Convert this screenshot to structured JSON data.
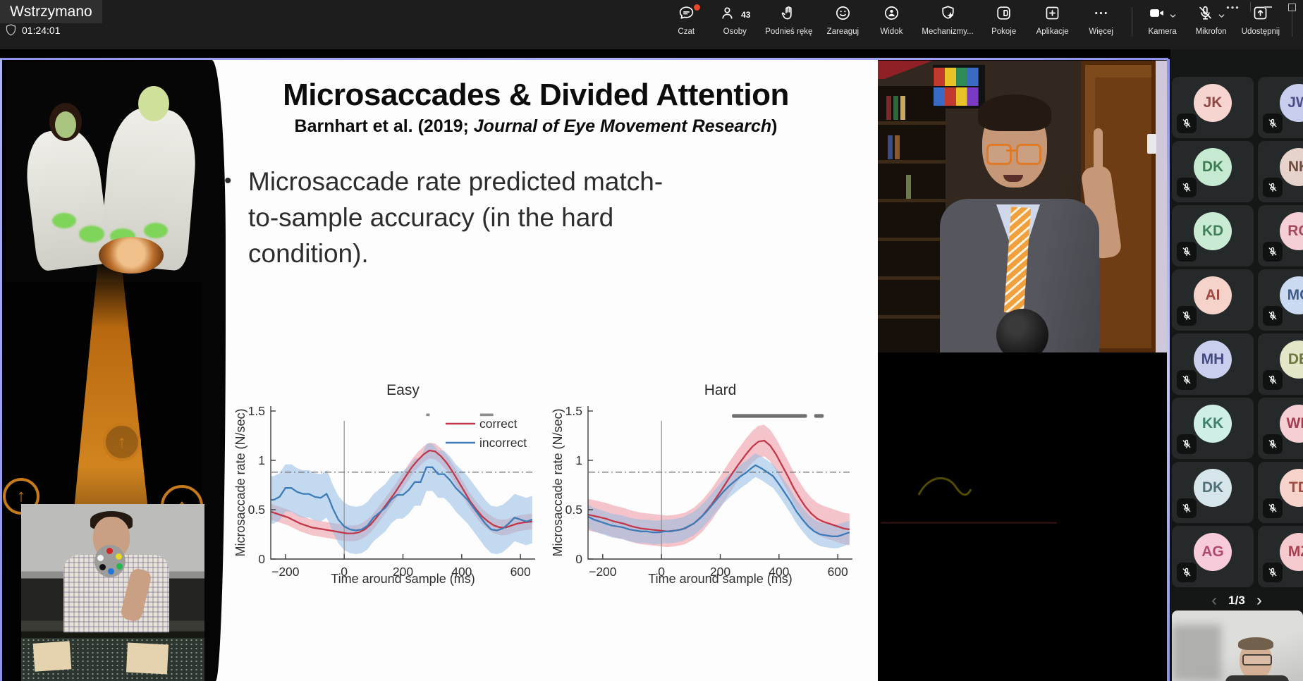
{
  "meeting": {
    "status_label": "Wstrzymano",
    "timer": "01:24:01",
    "window_controls": {
      "more": "more-options",
      "minimize": "minimize",
      "maximize": "maximize"
    },
    "toolbar": [
      {
        "id": "czat",
        "label": "Czat",
        "icon": "chat-icon",
        "notification_dot": true
      },
      {
        "id": "osoby",
        "label": "Osoby",
        "icon": "people-icon",
        "count": "43"
      },
      {
        "id": "podnies-reke",
        "label": "Podnieś rękę",
        "icon": "raised-hand-icon"
      },
      {
        "id": "zareaguj",
        "label": "Zareaguj",
        "icon": "smiley-icon"
      },
      {
        "id": "widok",
        "label": "Widok",
        "icon": "view-icon"
      },
      {
        "id": "mechanizmy",
        "label": "Mechanizmy...",
        "icon": "shield-gear-icon"
      },
      {
        "id": "pokoje",
        "label": "Pokoje",
        "icon": "rooms-icon"
      },
      {
        "id": "aplikacje",
        "label": "Aplikacje",
        "icon": "apps-plus-icon"
      },
      {
        "id": "wiecej",
        "label": "Więcej",
        "icon": "ellipsis-icon",
        "divider_after": true
      },
      {
        "id": "kamera",
        "label": "Kamera",
        "icon": "camera-icon",
        "chevron": true
      },
      {
        "id": "mikrofon",
        "label": "Mikrofon",
        "icon": "mic-off-icon",
        "chevron": true
      },
      {
        "id": "udostepnij",
        "label": "Udostępnij",
        "icon": "share-up-icon",
        "divider_after": true
      },
      {
        "id": "opusc",
        "label": "Opuść",
        "icon": "phone-hangup-icon",
        "danger": true
      }
    ],
    "accent_colors": {
      "notification_red": "#e8452d",
      "hangup_red": "#e2614f",
      "share_border_purple": "#8d92e6"
    }
  },
  "slide": {
    "title": "Microsaccades & Divided Attention",
    "subtitle_plain": "Barnhart et al. (2019; ",
    "subtitle_italic": "Journal of Eye Movement Research",
    "subtitle_close": ")",
    "bullet_marker": "•",
    "bullet_lines": [
      "Microsaccade rate predicted match-",
      "to-sample accuracy (in the hard",
      "condition)."
    ]
  },
  "chart_data": [
    {
      "type": "line",
      "title": "Easy",
      "xlabel": "Time around sample (ms)",
      "ylabel": "Microsaccade rate (N/sec)",
      "xlim": [
        -250,
        650
      ],
      "ylim": [
        0,
        1.55
      ],
      "xticks": [
        -200,
        0,
        200,
        400,
        600
      ],
      "yticks": [
        0,
        0.5,
        1,
        1.5
      ],
      "grid": false,
      "stimulus_onset_line_x": 0,
      "baseline_dashdot_y": 0.88,
      "legend": {
        "position": "top-right-inside",
        "entries": [
          "correct",
          "incorrect"
        ]
      },
      "sig_marks": [
        {
          "x": 285,
          "width_ms": 12
        },
        {
          "x": 485,
          "width_ms": 45
        }
      ],
      "series": [
        {
          "name": "correct",
          "color": "#c2384a",
          "band_color": "rgba(231,118,133,0.42)",
          "band_halfwidth": 0.08,
          "points": [
            [
              -250,
              0.48
            ],
            [
              -230,
              0.46
            ],
            [
              -210,
              0.44
            ],
            [
              -190,
              0.42
            ],
            [
              -170,
              0.39
            ],
            [
              -150,
              0.36
            ],
            [
              -130,
              0.34
            ],
            [
              -110,
              0.32
            ],
            [
              -90,
              0.31
            ],
            [
              -70,
              0.3
            ],
            [
              -50,
              0.29
            ],
            [
              -30,
              0.28
            ],
            [
              -10,
              0.27
            ],
            [
              10,
              0.26
            ],
            [
              30,
              0.26
            ],
            [
              50,
              0.27
            ],
            [
              70,
              0.3
            ],
            [
              90,
              0.35
            ],
            [
              110,
              0.42
            ],
            [
              130,
              0.5
            ],
            [
              150,
              0.58
            ],
            [
              170,
              0.66
            ],
            [
              190,
              0.75
            ],
            [
              210,
              0.84
            ],
            [
              230,
              0.93
            ],
            [
              250,
              1.0
            ],
            [
              270,
              1.06
            ],
            [
              290,
              1.1
            ],
            [
              310,
              1.09
            ],
            [
              330,
              1.04
            ],
            [
              350,
              0.97
            ],
            [
              370,
              0.88
            ],
            [
              390,
              0.78
            ],
            [
              410,
              0.68
            ],
            [
              430,
              0.58
            ],
            [
              450,
              0.5
            ],
            [
              470,
              0.43
            ],
            [
              490,
              0.38
            ],
            [
              510,
              0.34
            ],
            [
              530,
              0.32
            ],
            [
              550,
              0.32
            ],
            [
              570,
              0.34
            ],
            [
              590,
              0.36
            ],
            [
              610,
              0.37
            ],
            [
              640,
              0.38
            ]
          ]
        },
        {
          "name": "incorrect",
          "color": "#3e7cb8",
          "band_color": "rgba(147,188,228,0.55)",
          "band_halfwidth": 0.24,
          "points": [
            [
              -250,
              0.6
            ],
            [
              -240,
              0.6
            ],
            [
              -220,
              0.63
            ],
            [
              -200,
              0.72
            ],
            [
              -180,
              0.72
            ],
            [
              -160,
              0.68
            ],
            [
              -140,
              0.66
            ],
            [
              -120,
              0.66
            ],
            [
              -100,
              0.63
            ],
            [
              -80,
              0.62
            ],
            [
              -60,
              0.66
            ],
            [
              -50,
              0.6
            ],
            [
              -40,
              0.52
            ],
            [
              -20,
              0.4
            ],
            [
              0,
              0.33
            ],
            [
              20,
              0.3
            ],
            [
              40,
              0.29
            ],
            [
              60,
              0.3
            ],
            [
              80,
              0.34
            ],
            [
              100,
              0.42
            ],
            [
              120,
              0.47
            ],
            [
              140,
              0.52
            ],
            [
              160,
              0.6
            ],
            [
              180,
              0.65
            ],
            [
              200,
              0.65
            ],
            [
              220,
              0.7
            ],
            [
              240,
              0.78
            ],
            [
              260,
              0.78
            ],
            [
              280,
              0.93
            ],
            [
              300,
              0.93
            ],
            [
              320,
              0.86
            ],
            [
              340,
              0.86
            ],
            [
              360,
              0.8
            ],
            [
              380,
              0.72
            ],
            [
              400,
              0.66
            ],
            [
              420,
              0.6
            ],
            [
              440,
              0.52
            ],
            [
              460,
              0.44
            ],
            [
              480,
              0.36
            ],
            [
              500,
              0.3
            ],
            [
              520,
              0.29
            ],
            [
              540,
              0.31
            ],
            [
              560,
              0.36
            ],
            [
              580,
              0.42
            ],
            [
              600,
              0.4
            ],
            [
              620,
              0.38
            ],
            [
              640,
              0.4
            ]
          ]
        }
      ]
    },
    {
      "type": "line",
      "title": "Hard",
      "xlabel": "Time around sample (ms)",
      "ylabel": "Microsaccade rate (N/sec)",
      "xlim": [
        -250,
        650
      ],
      "ylim": [
        0,
        1.55
      ],
      "xticks": [
        -200,
        0,
        200,
        400,
        600
      ],
      "yticks": [
        0,
        0.5,
        1,
        1.5
      ],
      "grid": false,
      "stimulus_onset_line_x": 0,
      "baseline_dashdot_y": 0.88,
      "legend": null,
      "sig_bars": [
        {
          "x1": 240,
          "x2": 495
        },
        {
          "x1": 520,
          "x2": 552
        }
      ],
      "series": [
        {
          "name": "correct",
          "color": "#c2384a",
          "band_color": "rgba(235,126,142,0.45)",
          "band_halfwidth": 0.16,
          "points": [
            [
              -250,
              0.45
            ],
            [
              -220,
              0.43
            ],
            [
              -190,
              0.41
            ],
            [
              -160,
              0.38
            ],
            [
              -130,
              0.36
            ],
            [
              -100,
              0.33
            ],
            [
              -70,
              0.31
            ],
            [
              -40,
              0.3
            ],
            [
              -10,
              0.29
            ],
            [
              20,
              0.28
            ],
            [
              50,
              0.29
            ],
            [
              80,
              0.31
            ],
            [
              110,
              0.36
            ],
            [
              140,
              0.44
            ],
            [
              170,
              0.55
            ],
            [
              200,
              0.68
            ],
            [
              230,
              0.82
            ],
            [
              260,
              0.95
            ],
            [
              290,
              1.07
            ],
            [
              310,
              1.14
            ],
            [
              330,
              1.19
            ],
            [
              350,
              1.2
            ],
            [
              370,
              1.15
            ],
            [
              390,
              1.06
            ],
            [
              410,
              0.95
            ],
            [
              430,
              0.84
            ],
            [
              450,
              0.72
            ],
            [
              470,
              0.62
            ],
            [
              490,
              0.53
            ],
            [
              510,
              0.46
            ],
            [
              530,
              0.41
            ],
            [
              550,
              0.38
            ],
            [
              570,
              0.36
            ],
            [
              590,
              0.34
            ],
            [
              620,
              0.31
            ],
            [
              640,
              0.3
            ]
          ]
        },
        {
          "name": "incorrect",
          "color": "#3e7cb8",
          "band_color": "rgba(147,188,228,0.55)",
          "band_halfwidth": 0.12,
          "points": [
            [
              -250,
              0.43
            ],
            [
              -230,
              0.4
            ],
            [
              -210,
              0.38
            ],
            [
              -190,
              0.36
            ],
            [
              -170,
              0.34
            ],
            [
              -150,
              0.33
            ],
            [
              -130,
              0.32
            ],
            [
              -110,
              0.3
            ],
            [
              -90,
              0.29
            ],
            [
              -70,
              0.28
            ],
            [
              -50,
              0.28
            ],
            [
              -30,
              0.27
            ],
            [
              -10,
              0.27
            ],
            [
              10,
              0.28
            ],
            [
              30,
              0.28
            ],
            [
              50,
              0.29
            ],
            [
              70,
              0.3
            ],
            [
              90,
              0.33
            ],
            [
              110,
              0.36
            ],
            [
              130,
              0.41
            ],
            [
              150,
              0.47
            ],
            [
              170,
              0.54
            ],
            [
              190,
              0.61
            ],
            [
              210,
              0.68
            ],
            [
              230,
              0.74
            ],
            [
              250,
              0.79
            ],
            [
              270,
              0.84
            ],
            [
              290,
              0.88
            ],
            [
              310,
              0.93
            ],
            [
              320,
              0.95
            ],
            [
              340,
              0.92
            ],
            [
              360,
              0.88
            ],
            [
              380,
              0.84
            ],
            [
              400,
              0.76
            ],
            [
              420,
              0.67
            ],
            [
              440,
              0.58
            ],
            [
              460,
              0.48
            ],
            [
              480,
              0.4
            ],
            [
              500,
              0.33
            ],
            [
              520,
              0.28
            ],
            [
              540,
              0.25
            ],
            [
              560,
              0.24
            ],
            [
              580,
              0.23
            ],
            [
              600,
              0.23
            ],
            [
              620,
              0.25
            ],
            [
              640,
              0.27
            ]
          ]
        }
      ]
    }
  ],
  "participants": {
    "tiles": [
      {
        "initials": "JK",
        "bg": "#f6d4d0",
        "fg": "#8d4a45"
      },
      {
        "initials": "JW",
        "bg": "#c9cdee",
        "fg": "#4a4f88"
      },
      {
        "initials": "DK",
        "bg": "#c6e9d1",
        "fg": "#3f7d54"
      },
      {
        "initials": "NK",
        "bg": "#e6d3cc",
        "fg": "#6e4a3f"
      },
      {
        "initials": "KD",
        "bg": "#c9ebd4",
        "fg": "#41805a"
      },
      {
        "initials": "RG",
        "bg": "#f4cfd6",
        "fg": "#a34a5e"
      },
      {
        "initials": "AI",
        "bg": "#f6d3ca",
        "fg": "#9c4a42"
      },
      {
        "initials": "MC",
        "bg": "#cbdaf0",
        "fg": "#3d5c8c"
      },
      {
        "initials": "MH",
        "bg": "#cbcfee",
        "fg": "#444a82"
      },
      {
        "initials": "DB",
        "bg": "#e4e6c8",
        "fg": "#6f7440"
      },
      {
        "initials": "KK",
        "bg": "#cfeee6",
        "fg": "#3f8071"
      },
      {
        "initials": "WB",
        "bg": "#f6cfd4",
        "fg": "#a63d4f"
      },
      {
        "initials": "DK",
        "bg": "#d5e5e9",
        "fg": "#50707a"
      },
      {
        "initials": "TD",
        "bg": "#f7d3cc",
        "fg": "#9c4a42"
      },
      {
        "initials": "AG",
        "bg": "#f7cbd9",
        "fg": "#b04a70"
      },
      {
        "initials": "MZ",
        "bg": "#f4cace",
        "fg": "#a54050"
      }
    ],
    "muted_icon": "mic-off-icon",
    "pagination": {
      "label": "1/3",
      "prev_icon": "chevron-left-icon",
      "next_icon": "chevron-right-icon"
    }
  }
}
